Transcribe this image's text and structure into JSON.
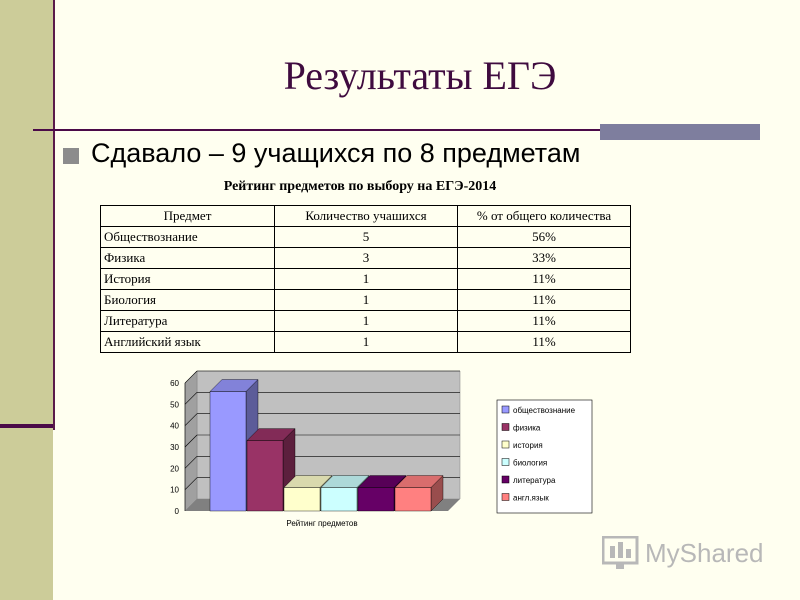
{
  "slide": {
    "title": "Результаты ЕГЭ",
    "bullet": "Сдавало – 9 учащихся по 8 предметам",
    "table_caption": "Рейтинг предметов по выбору на ЕГЭ-2014"
  },
  "table": {
    "headers": [
      "Предмет",
      "Количество учашихся",
      "% от общего количества"
    ],
    "rows": [
      [
        "Обществознание",
        "5",
        "56%"
      ],
      [
        "Физика",
        "3",
        "33%"
      ],
      [
        "История",
        "1",
        "11%"
      ],
      [
        "Биология",
        "1",
        "11%"
      ],
      [
        "Литература",
        "1",
        "11%"
      ],
      [
        "Английский язык",
        "1",
        "11%"
      ]
    ]
  },
  "chart_data": {
    "type": "bar",
    "categories": [
      "обществознание",
      "физика",
      "история",
      "биология",
      "литература",
      "англ.язык"
    ],
    "values": [
      56,
      33,
      11,
      11,
      11,
      11
    ],
    "colors": [
      "#9999ff",
      "#993366",
      "#ffffcc",
      "#ccffff",
      "#660066",
      "#ff8080"
    ],
    "title": "",
    "xlabel": "Рейтинг предметов",
    "ylabel": "",
    "ylim": [
      0,
      60
    ],
    "yticks": [
      "0",
      "10",
      "20",
      "30",
      "40",
      "50",
      "60"
    ],
    "grid": true,
    "legend": "right"
  },
  "branding": {
    "logo_text": "MyShared"
  }
}
